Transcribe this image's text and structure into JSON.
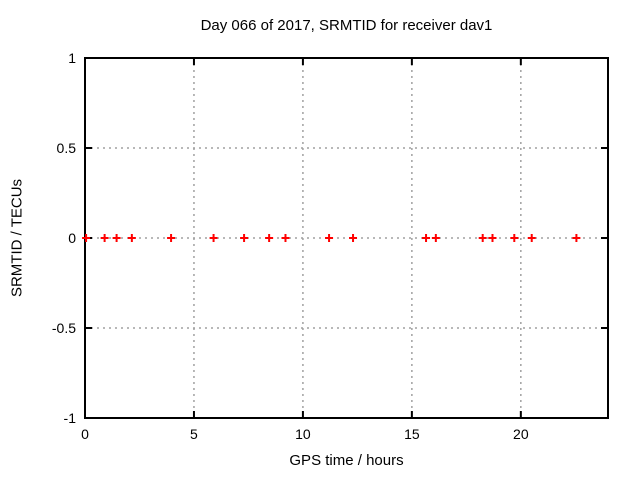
{
  "window": {
    "background": "#ffffff"
  },
  "chart_data": {
    "type": "scatter",
    "title": "Day 066 of 2017, SRMTID for receiver dav1",
    "xlabel": "GPS time / hours",
    "ylabel": "SRMTID / TECUs",
    "xlim": [
      0,
      24
    ],
    "ylim": [
      -1,
      1
    ],
    "xticks": [
      0,
      5,
      10,
      15,
      20
    ],
    "yticks": [
      -1,
      -0.5,
      0,
      0.5,
      1
    ],
    "grid": true,
    "legend": "none",
    "marker_style": "plus",
    "colors": {
      "marker": "#ff0000",
      "grid": "#a0a0a0",
      "axis": "#000000",
      "text": "#000000",
      "background": "#ffffff"
    },
    "series": [
      {
        "name": "SRMTID",
        "x": [
          0.05,
          0.9,
          1.45,
          2.15,
          3.95,
          5.9,
          7.3,
          8.45,
          9.2,
          11.2,
          12.3,
          15.65,
          16.1,
          18.25,
          18.7,
          19.7,
          20.5,
          22.55
        ],
        "y": [
          0,
          0,
          0,
          0,
          0,
          0,
          0,
          0,
          0,
          0,
          0,
          0,
          0,
          0,
          0,
          0,
          0,
          0
        ]
      }
    ]
  }
}
